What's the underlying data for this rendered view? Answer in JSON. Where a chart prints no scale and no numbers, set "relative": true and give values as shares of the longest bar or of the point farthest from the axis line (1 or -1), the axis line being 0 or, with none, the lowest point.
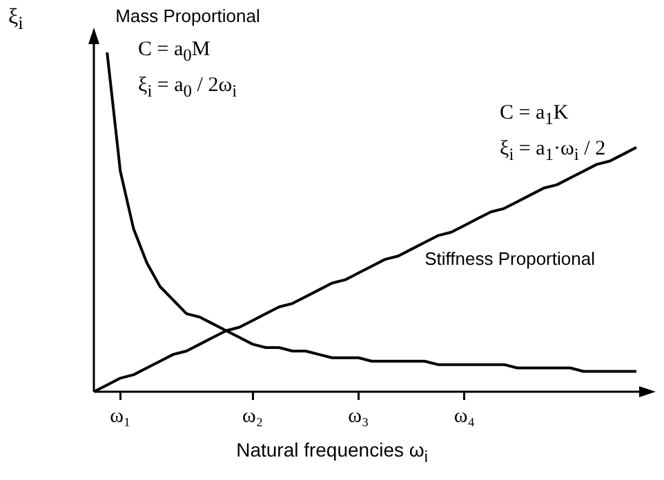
{
  "chart_data": {
    "type": "line",
    "relative": true,
    "xlabel": "Natural frequencies  ω$_{i}$",
    "ylabel": "ξ$_{i}$",
    "grid": false,
    "legend": false,
    "marker": "none",
    "line_style": "solid",
    "categories": [
      null,
      null,
      "ω₁",
      null,
      null,
      null,
      null,
      null,
      null,
      null,
      null,
      null,
      "ω₂",
      null,
      null,
      null,
      null,
      null,
      null,
      null,
      "ω₃",
      null,
      null,
      null,
      null,
      null,
      null,
      null,
      "ω₄",
      null,
      null,
      null,
      null,
      null,
      null,
      null,
      null,
      null,
      null,
      null,
      null,
      null
    ],
    "series": [
      {
        "name": "Mass Proportional",
        "color": "#000000",
        "values": [
          null,
          1,
          0.65,
          0.48,
          0.38,
          0.31,
          0.27,
          0.23,
          0.22,
          0.2,
          0.18,
          0.16,
          0.14,
          0.13,
          0.13,
          0.12,
          0.12,
          0.11,
          0.1,
          0.1,
          0.1,
          0.09,
          0.09,
          0.09,
          0.09,
          0.09,
          0.08,
          0.08,
          0.08,
          0.08,
          0.08,
          0.08,
          0.07,
          0.07,
          0.07,
          0.07,
          0.07,
          0.06,
          0.06,
          0.06,
          0.06,
          0.06
        ]
      },
      {
        "name": "Stiffness Proportional",
        "color": "#000000",
        "values": [
          0,
          0.02,
          0.04,
          0.05,
          0.07,
          0.09,
          0.11,
          0.12,
          0.14,
          0.16,
          0.18,
          0.19,
          0.21,
          0.23,
          0.25,
          0.26,
          0.28,
          0.3,
          0.32,
          0.33,
          0.35,
          0.37,
          0.39,
          0.4,
          0.42,
          0.44,
          0.46,
          0.47,
          0.49,
          0.51,
          0.53,
          0.54,
          0.56,
          0.58,
          0.6,
          0.61,
          0.63,
          0.65,
          0.67,
          0.68,
          0.7,
          0.72
        ]
      }
    ],
    "annotations": [
      "C = a$_{0}$M",
      "ξ$_{i}$ = a$_{0}$ / 2ω$_{i}$",
      "C = a$_{1}$K",
      "ξ$_{i}$ = a$_{1}$·ω$_{i}$ / 2"
    ]
  }
}
